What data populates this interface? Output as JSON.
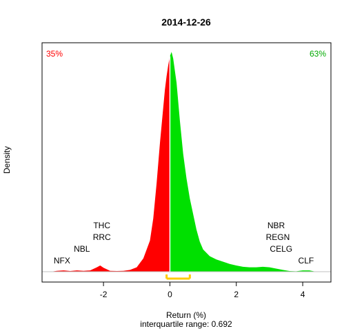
{
  "chart_data": {
    "type": "area",
    "title": "2014-12-26",
    "xlabel": "Return (%)",
    "ylabel": "Density",
    "subtitle": "interquartile range: 0.692",
    "xlim": [
      -3.85,
      4.85
    ],
    "ylim": [
      0,
      1.0
    ],
    "xticks": [
      "-2",
      "0",
      "2",
      "4"
    ],
    "xtick_values": [
      -2,
      0,
      2,
      4
    ],
    "negative_share": "35%",
    "positive_share": "63%",
    "colors": {
      "negative": "#ff0000",
      "positive": "#00e000",
      "iqr": "#ffcc00",
      "baseline": "#bfbfbf"
    },
    "interquartile_range": 0.692,
    "iqr_bounds": [
      -0.1,
      0.6
    ],
    "density": {
      "x": [
        -3.6,
        -3.4,
        -3.2,
        -3.0,
        -2.8,
        -2.6,
        -2.4,
        -2.2,
        -2.1,
        -2.0,
        -1.8,
        -1.6,
        -1.4,
        -1.2,
        -1.0,
        -0.8,
        -0.6,
        -0.5,
        -0.4,
        -0.3,
        -0.2,
        -0.15,
        -0.1,
        -0.05,
        0.0,
        0.05,
        0.1,
        0.2,
        0.3,
        0.4,
        0.5,
        0.6,
        0.7,
        0.8,
        0.9,
        1.0,
        1.2,
        1.4,
        1.6,
        1.8,
        2.0,
        2.2,
        2.4,
        2.6,
        2.8,
        3.0,
        3.2,
        3.4,
        3.6,
        3.8,
        4.0,
        4.2,
        4.4
      ],
      "y": [
        0.0,
        0.004,
        0.006,
        0.003,
        0.006,
        0.004,
        0.006,
        0.02,
        0.028,
        0.018,
        0.004,
        0.003,
        0.004,
        0.008,
        0.02,
        0.06,
        0.14,
        0.24,
        0.4,
        0.58,
        0.74,
        0.82,
        0.88,
        0.93,
        0.97,
        0.99,
        0.96,
        0.85,
        0.68,
        0.53,
        0.42,
        0.33,
        0.26,
        0.19,
        0.135,
        0.1,
        0.07,
        0.055,
        0.045,
        0.035,
        0.028,
        0.022,
        0.02,
        0.02,
        0.022,
        0.02,
        0.014,
        0.008,
        0.003,
        0.002,
        0.006,
        0.006,
        0.0
      ]
    },
    "annotations": [
      {
        "text": "NFX",
        "x": -3.25,
        "row": 1
      },
      {
        "text": "NBL",
        "x": -2.65,
        "row": 2
      },
      {
        "text": "RRC",
        "x": -2.05,
        "row": 3
      },
      {
        "text": "THC",
        "x": -2.05,
        "row": 4
      },
      {
        "text": "CLF",
        "x": 4.1,
        "row": 1
      },
      {
        "text": "CELG",
        "x": 3.35,
        "row": 2
      },
      {
        "text": "REGN",
        "x": 3.25,
        "row": 3
      },
      {
        "text": "NBR",
        "x": 3.2,
        "row": 4
      }
    ]
  }
}
